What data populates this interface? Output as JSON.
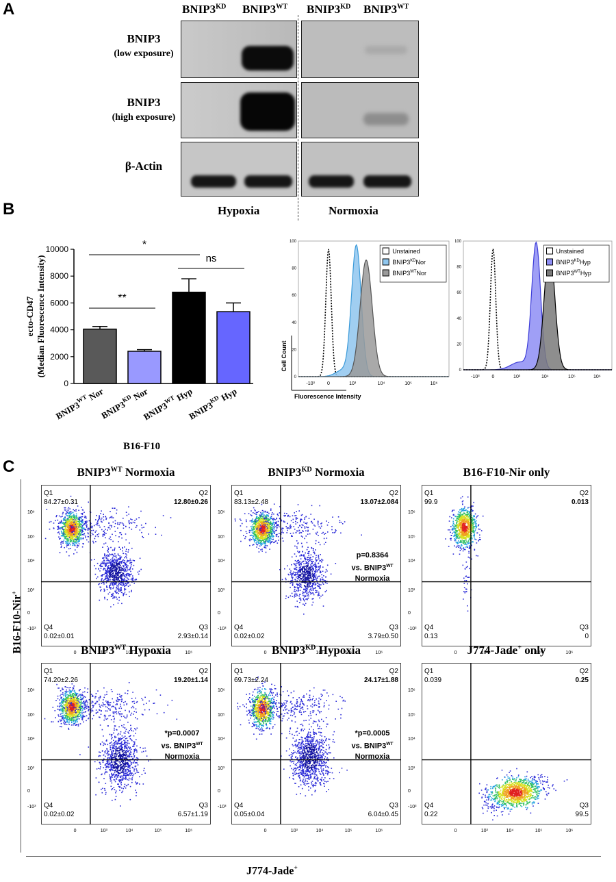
{
  "panelA": {
    "label": "A",
    "header_hyp": [
      "BNIP3KD",
      "BNIP3WT"
    ],
    "header_nor": [
      "BNIP3KD",
      "BNIP3WT"
    ],
    "rows": [
      {
        "line1": "BNIP3",
        "line2": "(low exposure)"
      },
      {
        "line1": "BNIP3",
        "line2": "(high exposure)"
      },
      {
        "line1": "β-Actin",
        "line2": ""
      }
    ],
    "cond_hyp": "Hypoxia",
    "cond_nor": "Normoxia"
  },
  "panelB": {
    "label": "B",
    "group_label": "B16-F10",
    "hist1_legend": [
      "Unstained",
      "BNIP3KDNor",
      "BNIP3WTNor"
    ],
    "hist2_legend": [
      "Unstained",
      "BNIP3KDHyp",
      "BNIP3WTHyp"
    ],
    "hist_yaxis": "Cell Count",
    "hist_xaxis": "Fluorescence Intensity",
    "hist_xticks": [
      "-10³",
      "0",
      "10³",
      "10⁴",
      "10⁵",
      "10⁶"
    ],
    "hist_yticks": [
      "0",
      "20",
      "40",
      "60",
      "80",
      "100"
    ]
  },
  "chart_data": {
    "type": "bar",
    "categories": [
      "BNIP3WT Nor",
      "BNIP3KD Nor",
      "BNIP3WT Hyp",
      "BNIP3KD Hyp"
    ],
    "values": [
      4050,
      2400,
      6800,
      5350
    ],
    "errors": [
      200,
      120,
      1000,
      650
    ],
    "colors": [
      "#595959",
      "#9999ff",
      "#000000",
      "#6666ff"
    ],
    "ylabel": "ecto-CD47 (Median Fluorescence Intensity)",
    "xlabel": "B16-F10",
    "ylim": [
      0,
      10000
    ],
    "yticks": [
      0,
      2000,
      4000,
      6000,
      8000,
      10000
    ],
    "significance": [
      {
        "label": "*",
        "from": 0,
        "to": 2
      },
      {
        "label": "**",
        "from": 0,
        "to": 1
      },
      {
        "label": "ns",
        "from": 2,
        "to": 3
      }
    ]
  },
  "panelC": {
    "label": "C",
    "yaxis": "B16-F10-Nir+",
    "xaxis": "J774-Jade+",
    "plots": [
      {
        "title": "BNIP3WT Normoxia",
        "q1": "84.27±0.31",
        "q2": "12.80±0.26",
        "q3": "2.93±0.14",
        "q4": "0.02±0.01",
        "note": ""
      },
      {
        "title": "BNIP3KD Normoxia",
        "q1": "83.13±2.48",
        "q2": "13.07±2.084",
        "q3": "3.79±0.50",
        "q4": "0.02±0.02",
        "note": "p=0.8364 vs. BNIP3WT Normoxia"
      },
      {
        "title": "B16-F10-Nir only",
        "q1": "99.9",
        "q2": "0.013",
        "q3": "0",
        "q4": "0.13",
        "note": ""
      },
      {
        "title": "BNIP3WT Hypoxia",
        "q1": "74.20±2.26",
        "q2": "19.20±1.14",
        "q3": "6.57±1.19",
        "q4": "0.02±0.02",
        "note": "*p=0.0007 vs. BNIP3WT Normoxia"
      },
      {
        "title": "BNIP3KD Hypoxia",
        "q1": "69.73±2.24",
        "q2": "24.17±1.88",
        "q3": "6.04±0.45",
        "q4": "0.05±0.04",
        "note": "*p=0.0005 vs. BNIP3WT Normoxia"
      },
      {
        "title": "J774-Jade+ only",
        "q1": "0.039",
        "q2": "0.25",
        "q3": "99.5",
        "q4": "0.22",
        "note": ""
      }
    ],
    "quad_names": [
      "Q1",
      "Q2",
      "Q3",
      "Q4"
    ],
    "yticks": [
      "10⁶",
      "10⁵",
      "10⁴",
      "10³",
      "0",
      "-10³"
    ],
    "xticks": [
      "0",
      "10³",
      "10⁴",
      "10⁵",
      "10⁶"
    ]
  }
}
